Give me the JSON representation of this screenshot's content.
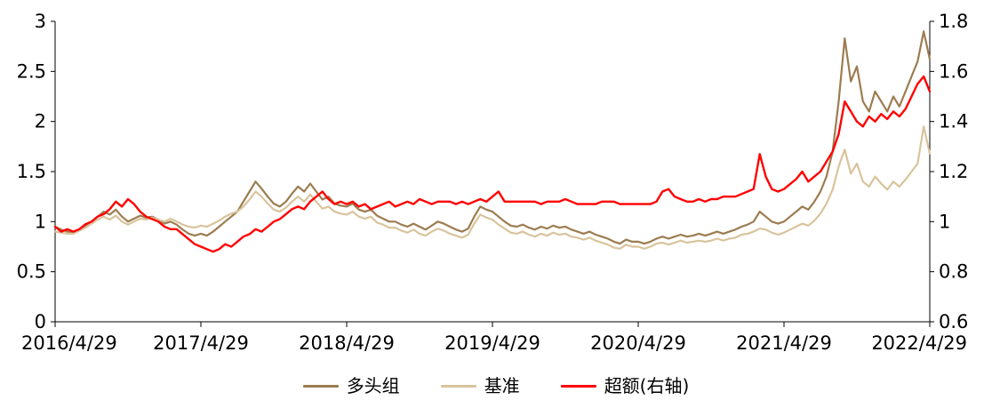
{
  "chart_data": {
    "type": "line",
    "title": "",
    "xlabel": "",
    "ylabel": "",
    "legend_position": "bottom",
    "grid": false,
    "axis_color": "#000000",
    "x_tick_labels": [
      "2016/4/29",
      "2017/4/29",
      "2018/4/29",
      "2019/4/29",
      "2020/4/29",
      "2021/4/29",
      "2022/4/29"
    ],
    "x_tick_indices": [
      0,
      24,
      48,
      72,
      96,
      120,
      144
    ],
    "left_axis": {
      "min": 0,
      "max": 3,
      "ticks": [
        0,
        0.5,
        1,
        1.5,
        2,
        2.5,
        3
      ],
      "tick_labels": [
        "0",
        "0.5",
        "1",
        "1.5",
        "2",
        "2.5",
        "3"
      ]
    },
    "right_axis": {
      "min": 0.6,
      "max": 1.8,
      "ticks": [
        0.6,
        0.8,
        1,
        1.2,
        1.4,
        1.6,
        1.8
      ],
      "tick_labels": [
        "0.6",
        "0.8",
        "1",
        "1.2",
        "1.4",
        "1.6",
        "1.8"
      ]
    },
    "series": [
      {
        "name": "多头组",
        "axis": "left",
        "color": "#9c7c50",
        "values": [
          0.95,
          0.92,
          0.9,
          0.89,
          0.92,
          0.96,
          1.0,
          1.05,
          1.1,
          1.07,
          1.12,
          1.05,
          1.0,
          1.03,
          1.06,
          1.04,
          1.05,
          1.02,
          0.98,
          1.0,
          0.97,
          0.92,
          0.88,
          0.86,
          0.88,
          0.86,
          0.9,
          0.95,
          1.0,
          1.05,
          1.1,
          1.2,
          1.3,
          1.4,
          1.33,
          1.25,
          1.18,
          1.15,
          1.2,
          1.28,
          1.35,
          1.3,
          1.38,
          1.3,
          1.22,
          1.25,
          1.18,
          1.16,
          1.15,
          1.18,
          1.12,
          1.1,
          1.12,
          1.06,
          1.03,
          1.0,
          1.0,
          0.97,
          0.95,
          0.98,
          0.95,
          0.92,
          0.96,
          1.0,
          0.98,
          0.95,
          0.92,
          0.9,
          0.93,
          1.05,
          1.15,
          1.12,
          1.1,
          1.05,
          1.0,
          0.96,
          0.95,
          0.97,
          0.94,
          0.92,
          0.95,
          0.93,
          0.96,
          0.94,
          0.95,
          0.92,
          0.9,
          0.88,
          0.9,
          0.87,
          0.85,
          0.83,
          0.8,
          0.78,
          0.82,
          0.8,
          0.8,
          0.78,
          0.8,
          0.83,
          0.85,
          0.83,
          0.85,
          0.87,
          0.85,
          0.86,
          0.88,
          0.86,
          0.88,
          0.9,
          0.88,
          0.9,
          0.92,
          0.95,
          0.97,
          1.0,
          1.1,
          1.05,
          1.0,
          0.98,
          1.0,
          1.05,
          1.1,
          1.15,
          1.12,
          1.2,
          1.3,
          1.45,
          1.7,
          2.2,
          2.83,
          2.4,
          2.55,
          2.2,
          2.1,
          2.3,
          2.2,
          2.1,
          2.25,
          2.15,
          2.3,
          2.45,
          2.6,
          2.9,
          2.62
        ]
      },
      {
        "name": "基准",
        "axis": "left",
        "color": "#d8c49c",
        "values": [
          0.9,
          0.89,
          0.88,
          0.88,
          0.91,
          0.94,
          0.98,
          1.02,
          1.05,
          1.02,
          1.06,
          1.0,
          0.97,
          1.0,
          1.03,
          1.02,
          1.04,
          1.02,
          1.0,
          1.03,
          1.0,
          0.97,
          0.95,
          0.94,
          0.96,
          0.95,
          0.98,
          1.01,
          1.05,
          1.08,
          1.1,
          1.15,
          1.22,
          1.3,
          1.25,
          1.18,
          1.12,
          1.1,
          1.14,
          1.2,
          1.25,
          1.2,
          1.27,
          1.2,
          1.13,
          1.15,
          1.1,
          1.08,
          1.07,
          1.1,
          1.05,
          1.03,
          1.05,
          0.99,
          0.97,
          0.94,
          0.94,
          0.91,
          0.89,
          0.92,
          0.88,
          0.86,
          0.9,
          0.93,
          0.91,
          0.88,
          0.86,
          0.84,
          0.87,
          0.98,
          1.07,
          1.04,
          1.02,
          0.97,
          0.93,
          0.89,
          0.88,
          0.9,
          0.87,
          0.85,
          0.88,
          0.86,
          0.89,
          0.87,
          0.88,
          0.85,
          0.84,
          0.82,
          0.84,
          0.81,
          0.79,
          0.77,
          0.74,
          0.73,
          0.77,
          0.75,
          0.75,
          0.73,
          0.75,
          0.78,
          0.79,
          0.77,
          0.79,
          0.81,
          0.79,
          0.8,
          0.81,
          0.8,
          0.81,
          0.83,
          0.81,
          0.83,
          0.84,
          0.87,
          0.88,
          0.9,
          0.93,
          0.92,
          0.89,
          0.87,
          0.89,
          0.92,
          0.95,
          0.98,
          0.96,
          1.01,
          1.08,
          1.18,
          1.32,
          1.55,
          1.72,
          1.48,
          1.58,
          1.4,
          1.35,
          1.45,
          1.38,
          1.32,
          1.4,
          1.35,
          1.42,
          1.5,
          1.58,
          1.95,
          1.68
        ]
      },
      {
        "name": "超额(右轴)",
        "axis": "right",
        "color": "#ff0000",
        "values": [
          0.98,
          0.96,
          0.97,
          0.96,
          0.97,
          0.99,
          1.0,
          1.02,
          1.03,
          1.05,
          1.08,
          1.06,
          1.09,
          1.07,
          1.04,
          1.02,
          1.01,
          1.0,
          0.98,
          0.97,
          0.97,
          0.95,
          0.93,
          0.91,
          0.9,
          0.89,
          0.88,
          0.89,
          0.91,
          0.9,
          0.92,
          0.94,
          0.95,
          0.97,
          0.96,
          0.98,
          1.0,
          1.01,
          1.03,
          1.05,
          1.06,
          1.05,
          1.08,
          1.1,
          1.12,
          1.09,
          1.07,
          1.08,
          1.07,
          1.08,
          1.06,
          1.07,
          1.05,
          1.06,
          1.07,
          1.08,
          1.06,
          1.07,
          1.08,
          1.07,
          1.09,
          1.08,
          1.07,
          1.08,
          1.08,
          1.08,
          1.07,
          1.08,
          1.07,
          1.08,
          1.09,
          1.08,
          1.1,
          1.12,
          1.08,
          1.08,
          1.08,
          1.08,
          1.08,
          1.08,
          1.07,
          1.08,
          1.08,
          1.08,
          1.09,
          1.08,
          1.07,
          1.07,
          1.07,
          1.07,
          1.08,
          1.08,
          1.08,
          1.07,
          1.07,
          1.07,
          1.07,
          1.07,
          1.07,
          1.08,
          1.12,
          1.13,
          1.1,
          1.09,
          1.08,
          1.08,
          1.09,
          1.08,
          1.09,
          1.09,
          1.1,
          1.1,
          1.1,
          1.11,
          1.12,
          1.13,
          1.27,
          1.18,
          1.13,
          1.12,
          1.13,
          1.15,
          1.17,
          1.2,
          1.16,
          1.18,
          1.2,
          1.24,
          1.28,
          1.35,
          1.48,
          1.44,
          1.4,
          1.38,
          1.42,
          1.4,
          1.43,
          1.41,
          1.44,
          1.42,
          1.45,
          1.5,
          1.55,
          1.58,
          1.52
        ]
      }
    ]
  }
}
